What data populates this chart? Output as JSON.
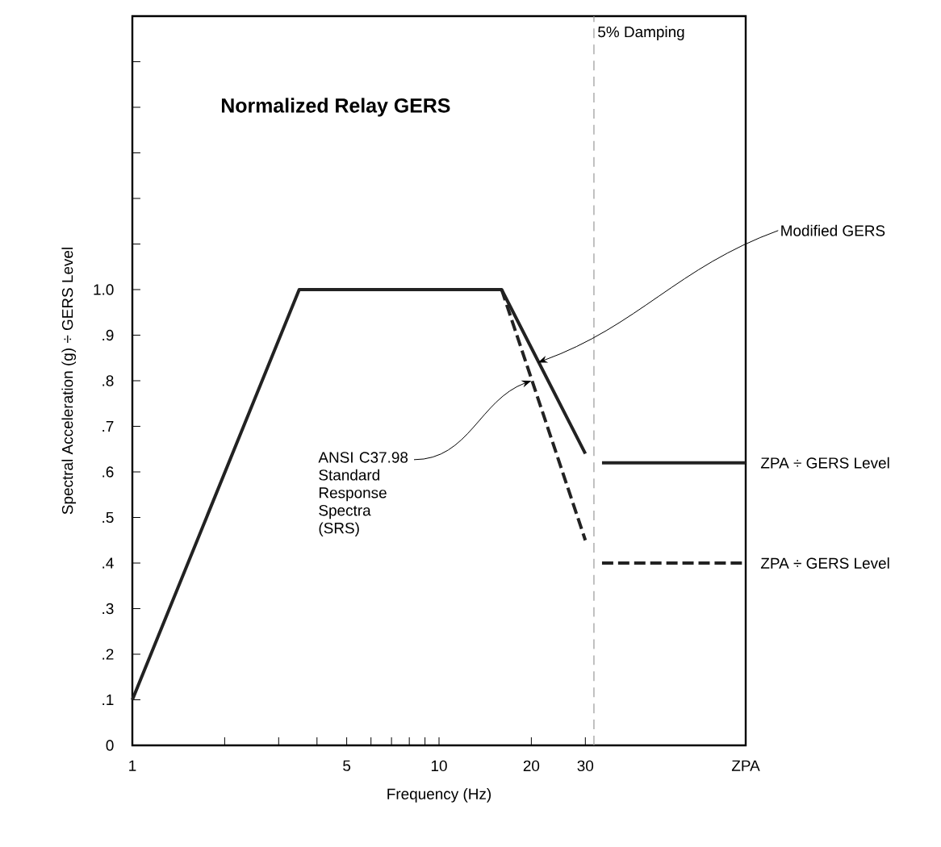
{
  "chart_data": {
    "type": "line",
    "title": "Normalized Relay GERS",
    "xlabel": "Frequency (Hz)",
    "ylabel": "Spectral Acceleration (g) ÷ GERS Level",
    "log": "x",
    "grid": false,
    "marker": "none",
    "xlim": [
      1,
      100
    ],
    "ylim": [
      0,
      1.6
    ],
    "xticks": [
      1,
      {
        "value": 2,
        "label": null
      },
      {
        "value": 3,
        "label": null
      },
      {
        "value": 4,
        "label": null
      },
      5,
      {
        "value": 6,
        "label": null
      },
      {
        "value": 7,
        "label": null
      },
      {
        "value": 8,
        "label": null
      },
      {
        "value": 9,
        "label": null
      },
      10,
      20,
      30,
      {
        "value": 100,
        "label": "ZPA"
      }
    ],
    "yticks": [
      0,
      {
        "value": 0.1,
        "label": ".1"
      },
      {
        "value": 0.2,
        "label": ".2"
      },
      {
        "value": 0.3,
        "label": ".3"
      },
      {
        "value": 0.4,
        "label": ".4"
      },
      {
        "value": 0.5,
        "label": ".5"
      },
      {
        "value": 0.6,
        "label": ".6"
      },
      {
        "value": 0.7,
        "label": ".7"
      },
      {
        "value": 0.8,
        "label": ".8"
      },
      {
        "value": 0.9,
        "label": ".9"
      },
      {
        "value": 1.0,
        "label": "1.0"
      },
      {
        "value": 1.1,
        "label": null
      },
      {
        "value": 1.2,
        "label": null
      },
      {
        "value": 1.3,
        "label": null
      },
      {
        "value": 1.4,
        "label": null
      },
      {
        "value": 1.5,
        "label": null
      }
    ],
    "series": [
      {
        "color": "#222222",
        "line_style": "solid",
        "x": [
          1,
          3.5,
          16,
          30
        ],
        "values": [
          0.1,
          1.0,
          1.0,
          0.64
        ]
      },
      {
        "color": "#222222",
        "line_style": "dashed",
        "x": [
          16,
          30
        ],
        "values": [
          1.0,
          0.45
        ]
      },
      {
        "color": "#222222",
        "line_style": "solid",
        "x": [
          34,
          100
        ],
        "values": [
          0.62,
          0.62
        ]
      },
      {
        "color": "#222222",
        "line_style": "dashed",
        "x": [
          34,
          100
        ],
        "values": [
          0.4,
          0.4
        ]
      }
    ],
    "ref_lines": [
      {
        "axis": "x",
        "value": 32,
        "label": "5% Damping",
        "color": "#999999",
        "line_style": "dashed"
      }
    ],
    "annotations": [
      {
        "text": "Modified GERS",
        "x": 21,
        "y": 0.84
      },
      {
        "text": "ANSI C37.98 Standard Response Spectra (SRS)",
        "x": 20,
        "y": 0.8
      },
      {
        "text": "ZPA ÷ GERS Level",
        "x": 100,
        "y": 0.62
      },
      {
        "text": "ZPA ÷ GERS Level",
        "x": 100,
        "y": 0.4
      }
    ]
  }
}
